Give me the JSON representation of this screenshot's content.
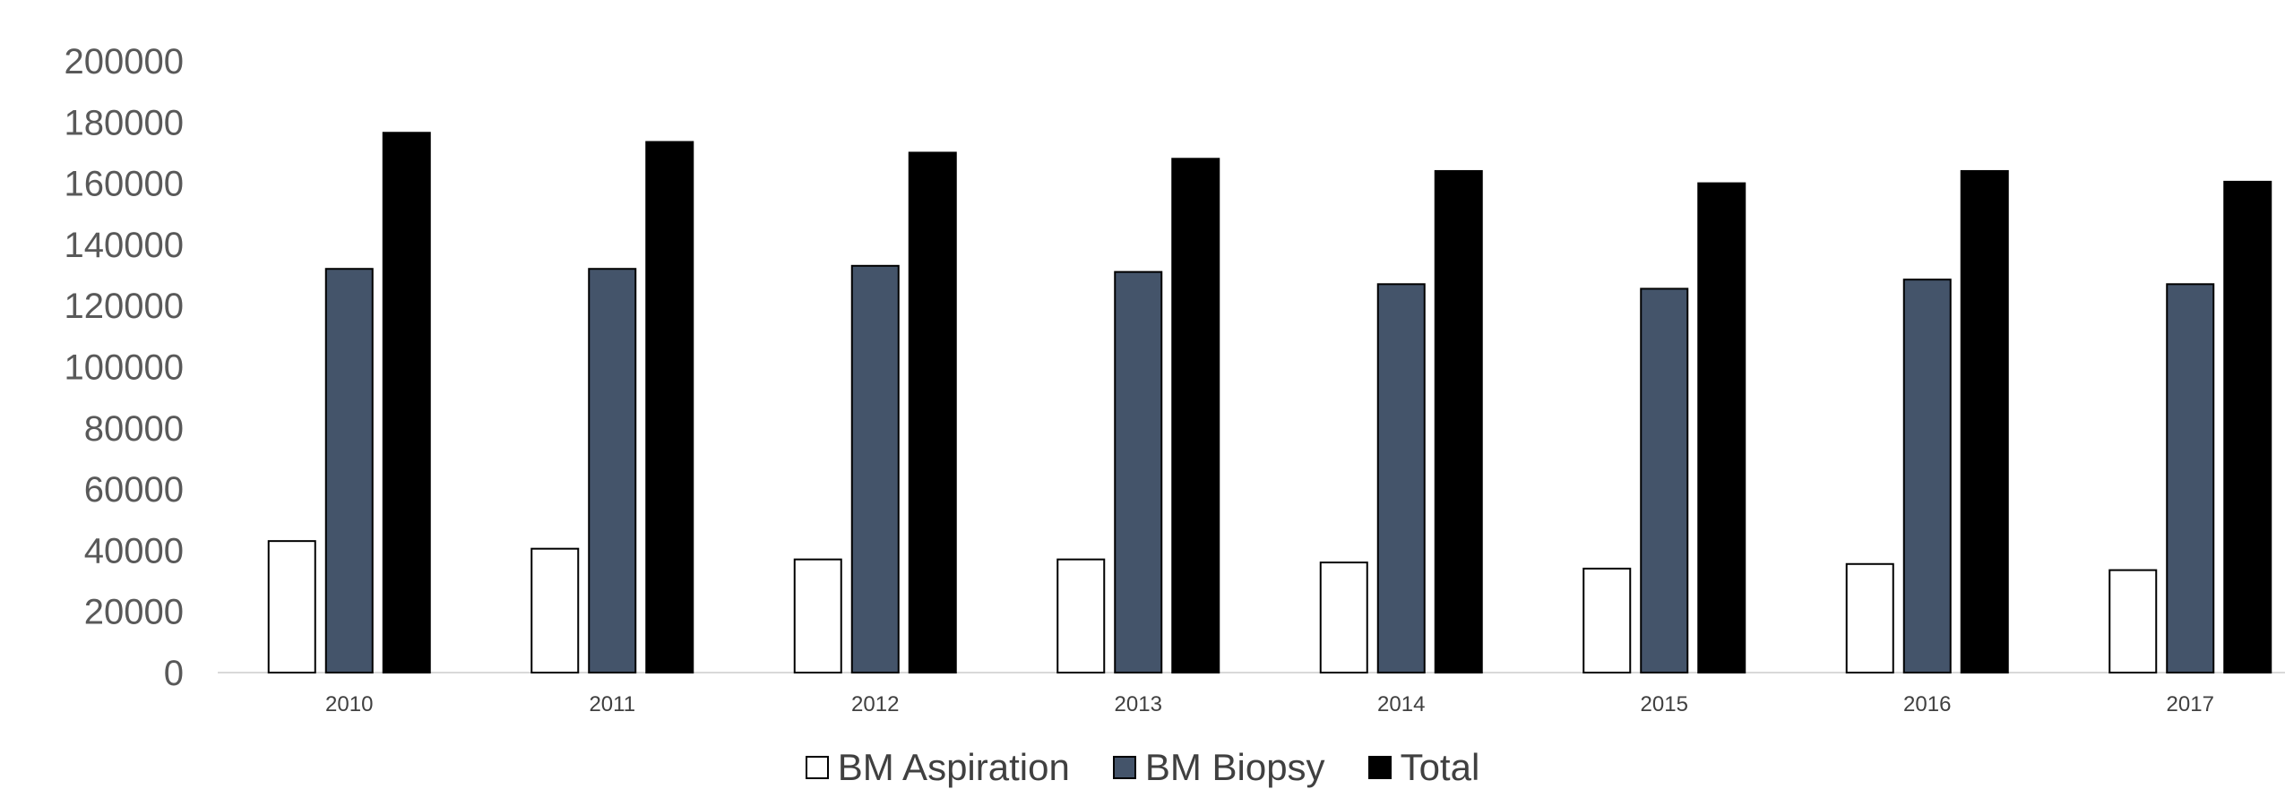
{
  "chart_data": {
    "type": "bar",
    "title": "",
    "xlabel": "",
    "ylabel": "",
    "categories": [
      "2010",
      "2011",
      "2012",
      "2013",
      "2014",
      "2015",
      "2016",
      "2017"
    ],
    "ylim": [
      0,
      200000
    ],
    "yticks": [
      "0",
      "20000",
      "40000",
      "60000",
      "80000",
      "100000",
      "120000",
      "140000",
      "160000",
      "180000",
      "200000"
    ],
    "grid": false,
    "legend_position": "bottom",
    "series": [
      {
        "name": "BM Aspiration",
        "color": "#ffffff",
        "values": [
          43000,
          40500,
          37000,
          37000,
          36000,
          34000,
          35500,
          33500
        ]
      },
      {
        "name": "BM Biopsy",
        "color": "#44546a",
        "values": [
          132000,
          132000,
          133000,
          131000,
          127000,
          125500,
          128500,
          127000
        ]
      },
      {
        "name": "Total",
        "color": "#000000",
        "values": [
          176500,
          173500,
          170000,
          168000,
          164000,
          160000,
          164000,
          160500
        ]
      }
    ]
  }
}
